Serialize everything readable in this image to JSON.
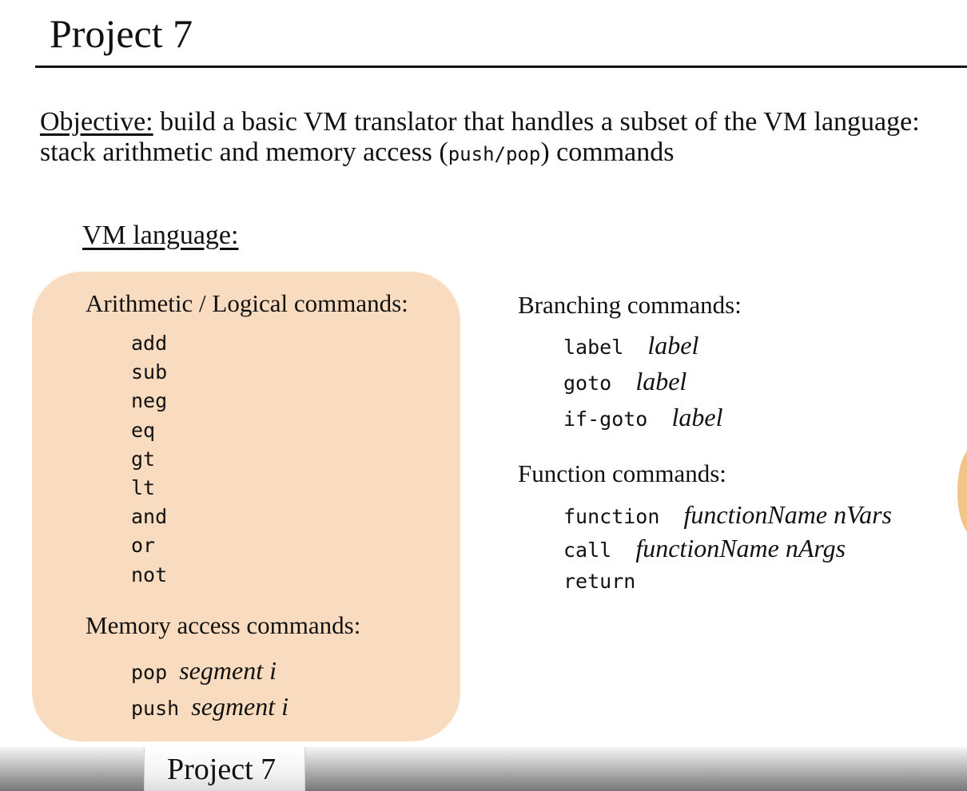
{
  "slide": {
    "title": "Project 7",
    "objective": {
      "label": "Objective:",
      "text_before": " build a basic VM translator that handles a subset of the VM language: stack arithmetic and memory access (",
      "code": "push/pop",
      "text_after": ") commands"
    },
    "vm_heading": "VM language:",
    "arithmetic": {
      "heading": "Arithmetic / Logical commands:",
      "commands": [
        "add",
        "sub",
        "neg",
        "eq",
        "gt",
        "lt",
        "and",
        "or",
        "not"
      ]
    },
    "memory": {
      "heading": "Memory access commands:",
      "commands": [
        {
          "code": "pop",
          "args": "segment i"
        },
        {
          "code": "push",
          "args": "segment i"
        }
      ]
    },
    "branching": {
      "heading": "Branching commands:",
      "commands": [
        {
          "code": "label",
          "args": "label"
        },
        {
          "code": "goto",
          "args": "label"
        },
        {
          "code": "if-goto",
          "args": "label"
        }
      ]
    },
    "function": {
      "heading": "Function commands:",
      "commands": [
        {
          "code": "function",
          "args": "functionName nVars"
        },
        {
          "code": "call",
          "args": "functionName nArgs"
        },
        {
          "code": "return",
          "args": ""
        }
      ]
    }
  },
  "bottom_tab": {
    "label": "Project 7"
  },
  "colors": {
    "box_fill": "#f9dcbf",
    "text": "#111111"
  }
}
